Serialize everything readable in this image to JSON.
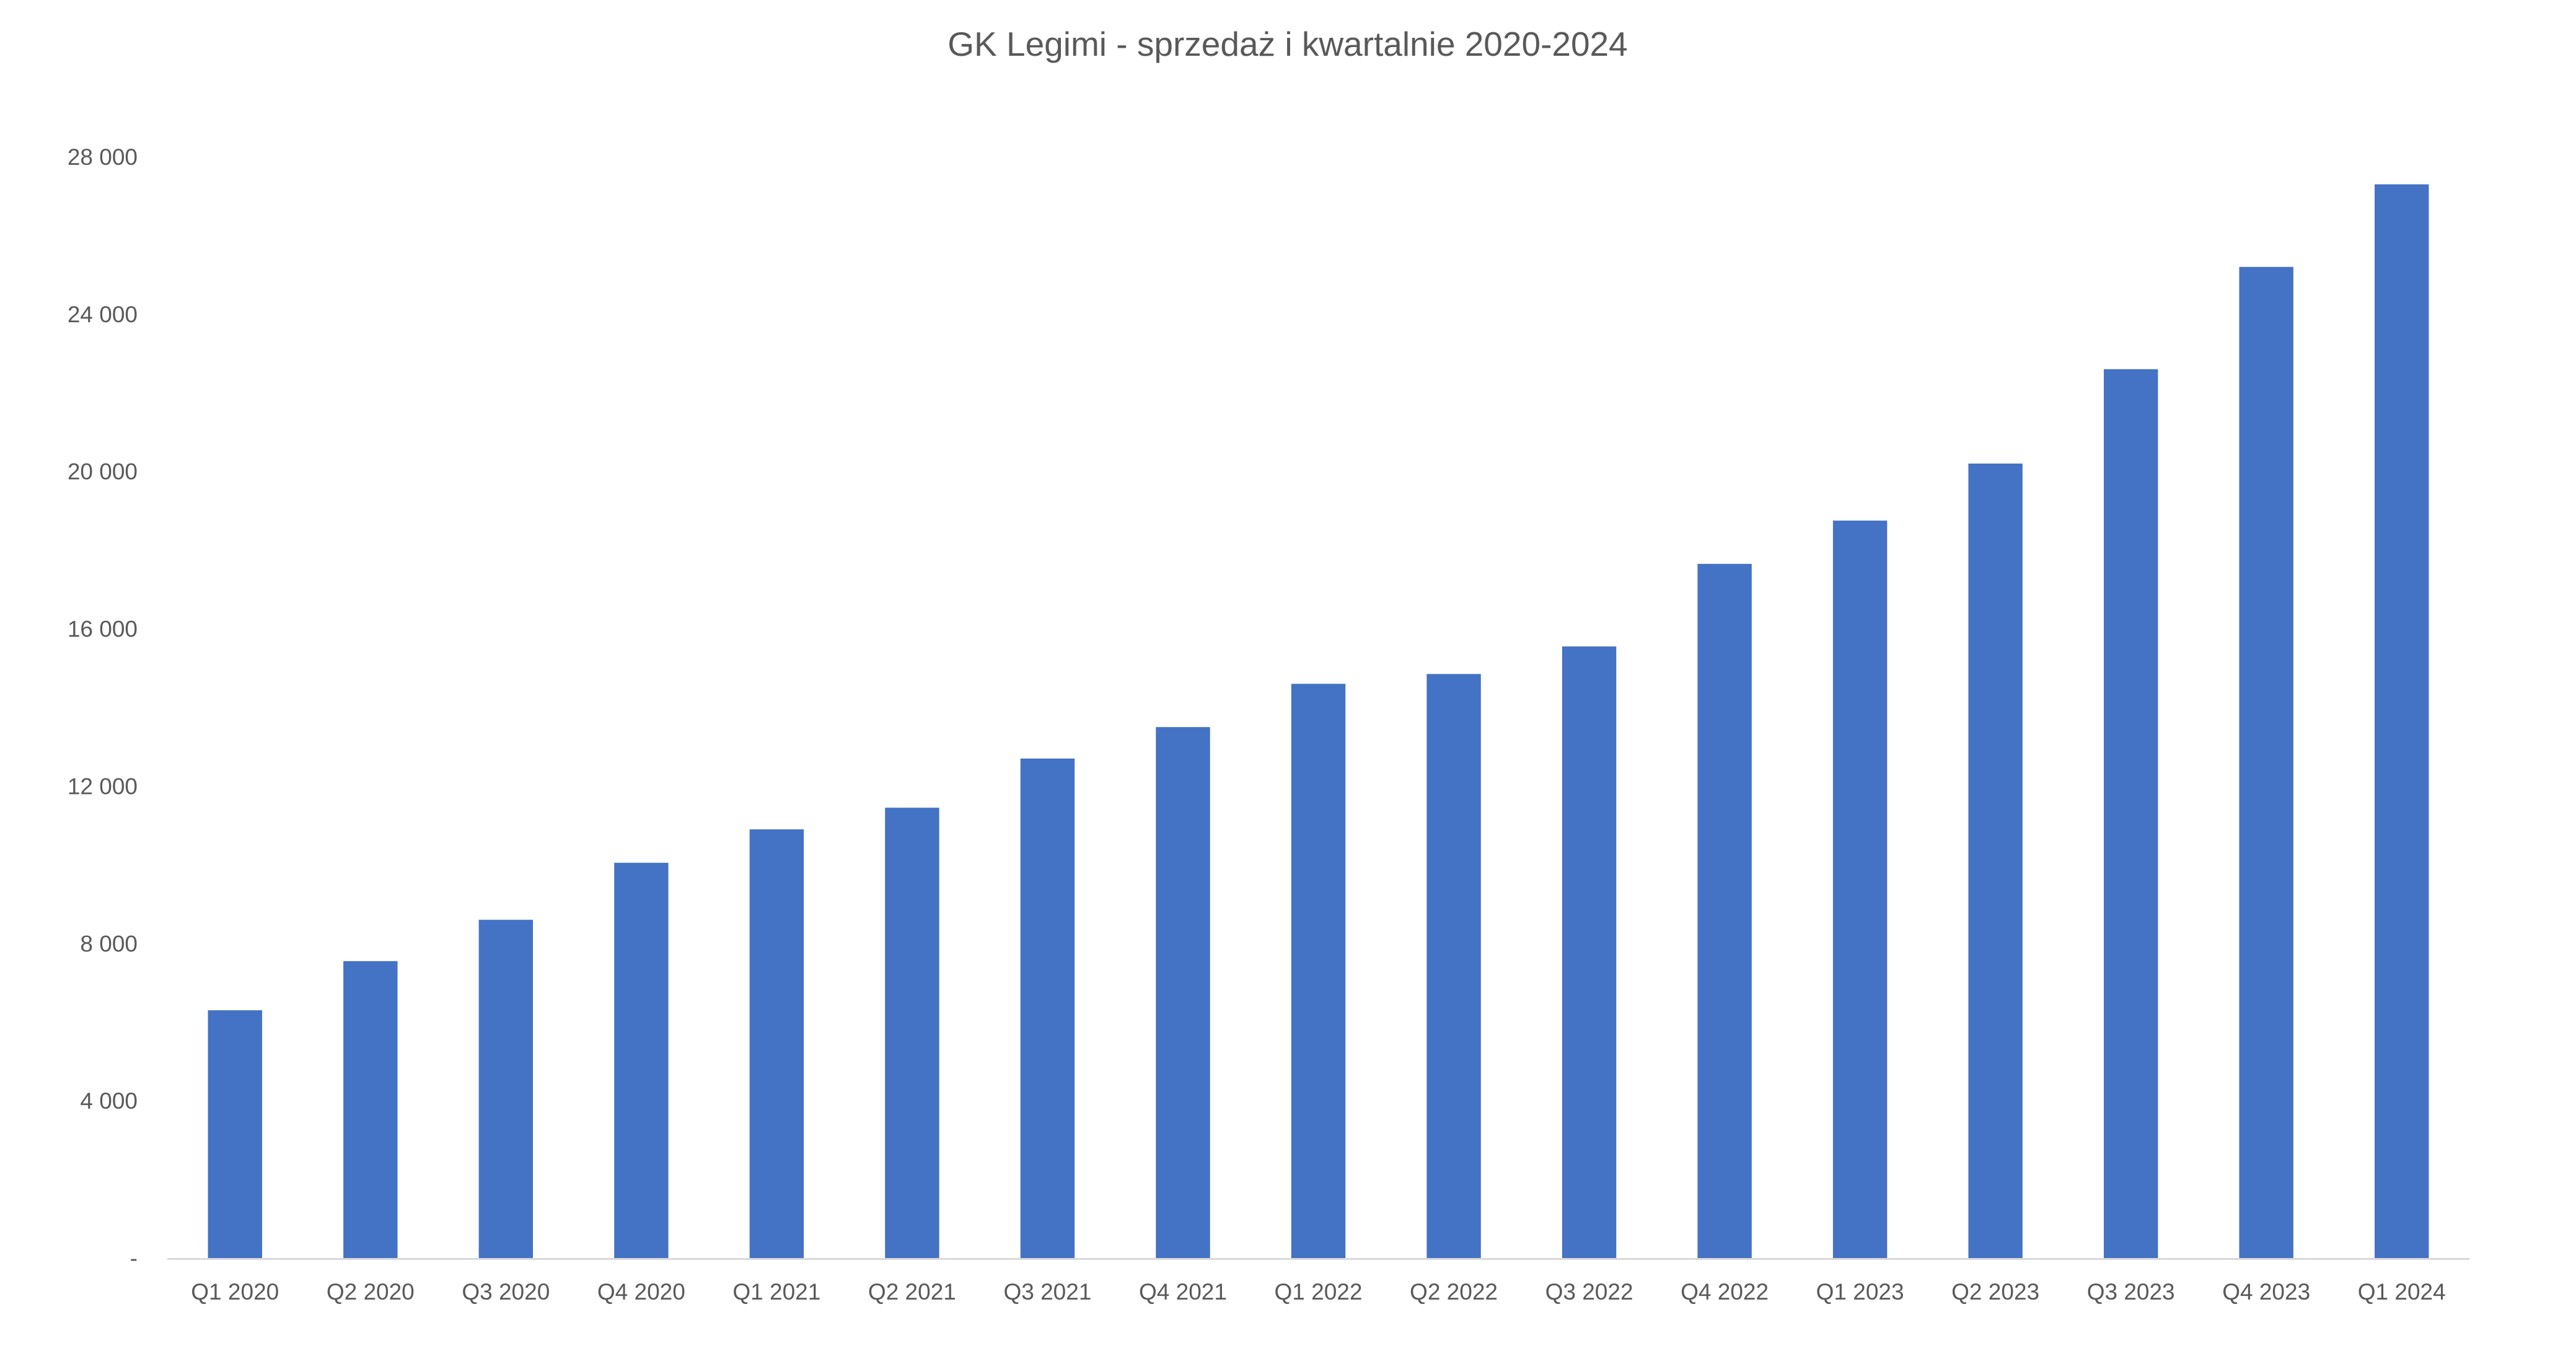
{
  "chart_data": {
    "type": "bar",
    "title": "GK Legimi - sprzedaż i kwartalnie 2020-2024",
    "xlabel": "",
    "ylabel": "",
    "categories": [
      "Q1 2020",
      "Q2 2020",
      "Q3 2020",
      "Q4 2020",
      "Q1 2021",
      "Q2 2021",
      "Q3 2021",
      "Q4 2021",
      "Q1 2022",
      "Q2 2022",
      "Q3 2022",
      "Q4 2022",
      "Q1 2023",
      "Q2 2023",
      "Q3 2023",
      "Q4 2023",
      "Q1 2024"
    ],
    "series": [
      {
        "values": [
          6300,
          7550,
          8600,
          10050,
          10900,
          11450,
          12700,
          13500,
          14600,
          14850,
          15550,
          17650,
          18750,
          20200,
          22600,
          25200,
          27300
        ]
      }
    ],
    "ylim": [
      0,
      28000
    ],
    "yticks": [
      0,
      4000,
      8000,
      12000,
      16000,
      20000,
      24000,
      28000
    ],
    "ytick_labels": [
      "-",
      "4 000",
      "8 000",
      "12 000",
      "16 000",
      "20 000",
      "24 000",
      "28 000"
    ],
    "grid": false,
    "legend": "none",
    "colors": {
      "bar": "#4472C4",
      "axis": "#D9D9D9",
      "text": "#595959"
    }
  }
}
